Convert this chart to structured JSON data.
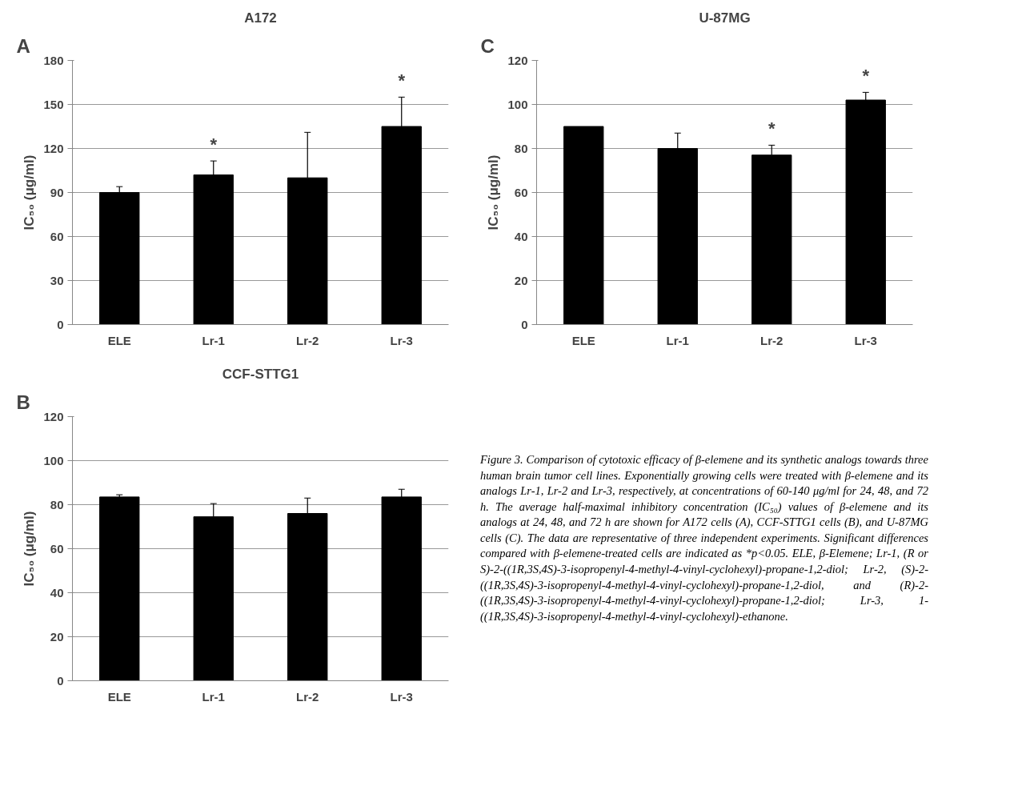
{
  "chart_data": [
    {
      "type": "bar",
      "title": "A172",
      "ylabel": "IC₅₀ (μg/ml)",
      "categories": [
        "ELE",
        "Lr-1",
        "Lr-2",
        "Lr-3"
      ],
      "values": [
        90,
        102,
        100,
        135
      ],
      "errors": [
        4,
        9.5,
        31,
        20
      ],
      "color": "#000000",
      "ylim": [
        0,
        180
      ],
      "yticks": [
        0,
        30,
        60,
        90,
        120,
        150,
        180
      ],
      "grid": "y",
      "annotations": [
        "A",
        {
          "text": "*",
          "x": "Lr-1",
          "y": 102
        },
        {
          "text": "*",
          "x": "Lr-3",
          "y": 135
        }
      ]
    },
    {
      "type": "bar",
      "title": "U-87MG",
      "ylabel": "IC₅₀ (μg/ml)",
      "categories": [
        "ELE",
        "Lr-1",
        "Lr-2",
        "Lr-3"
      ],
      "values": [
        90,
        80,
        77,
        102
      ],
      "errors": [
        null,
        7,
        4.5,
        3.5
      ],
      "color": "#000000",
      "ylim": [
        0,
        120
      ],
      "yticks": [
        0,
        20,
        40,
        60,
        80,
        100,
        120
      ],
      "grid": "y",
      "annotations": [
        "C",
        {
          "text": "*",
          "x": "Lr-2",
          "y": 77
        },
        {
          "text": "*",
          "x": "Lr-3",
          "y": 102
        }
      ]
    },
    {
      "type": "bar",
      "title": "CCF-STTG1",
      "ylabel": "IC₅₀ (μg/ml)",
      "categories": [
        "ELE",
        "Lr-1",
        "Lr-2",
        "Lr-3"
      ],
      "values": [
        83.5,
        74.5,
        76,
        83.5
      ],
      "errors": [
        1,
        6,
        7,
        3.5
      ],
      "color": "#000000",
      "ylim": [
        0,
        120
      ],
      "yticks": [
        0,
        20,
        40,
        60,
        80,
        100,
        120
      ],
      "grid": "y",
      "annotations": [
        "B"
      ]
    },
    {
      "type": "other",
      "annotations": [
        "Figure 3. Comparison of cytotoxic efficacy of β-elemene and its synthetic analogs towards three human brain tumor cell lines. Exponentially growing cells were treated with β-elemene and its analogs Lr-1, Lr-2 and Lr-3, respectively, at concentrations of 60-140 μg/ml for 24, 48, and 72 h. The average half-maximal inhibitory concentration (IC₅₀) values of β-elemene and its analogs at 24, 48, and 72 h are shown for A172 cells (A), CCF-STTG1 cells (B), and U-87MG cells (C). The data are representative of three independent experiments. Significant differences compared with β-elemene-treated cells are indicated as *p<0.05. ELE, β-Elemene; Lr-1, (R or S)-2-((1R,3S,4S)-3-isopropenyl-4-methyl-4-vinyl-cyclohexyl)-propane-1,2-diol; Lr-2, (S)-2-((1R,3S,4S)-3-isopropenyl-4-methyl-4-vinyl-cyclohexyl)-propane-1,2-diol, and (R)-2-((1R,3S,4S)-3-isopropenyl-4-methyl-4-vinyl-cyclohexyl)-propane-1,2-diol; Lr-3, 1-((1R,3S,4S)-3-isopropenyl-4-methyl-4-vinyl-cyclohexyl)-ethanone."
      ]
    }
  ]
}
